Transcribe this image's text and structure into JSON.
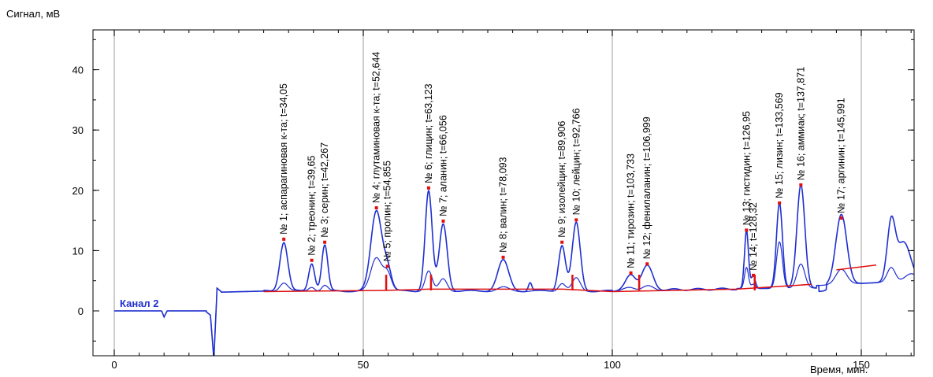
{
  "chart_data": {
    "type": "line",
    "ylabel": "Сигнал, мВ",
    "xlabel": "Время, мин.",
    "xlim": [
      0,
      162
    ],
    "ylim": [
      -7.5,
      46.5
    ],
    "xticks": [
      0,
      50,
      100,
      150
    ],
    "yticks": [
      -10,
      0,
      10,
      20,
      30,
      40
    ],
    "grid": true,
    "channel_label": "Канал 2",
    "colors": {
      "trace": "#1f2fd0",
      "baseline": "#e01010",
      "marker": "#e01010",
      "grid": "#bdbdbd",
      "axes": "#000000"
    },
    "peaks": [
      {
        "label": "№ 1; аспарагиновая к-та; t=34,05",
        "t": 34.05,
        "h": 11.5,
        "h2": 4.9,
        "w": 0.8
      },
      {
        "label": "№ 2; треонин; t=39,65",
        "t": 39.65,
        "h": 8.0,
        "h2": 4.2,
        "w": 0.6
      },
      {
        "label": "№ 3; серин; t=42,267",
        "t": 42.267,
        "h": 11.0,
        "h2": 4.4,
        "w": 0.6
      },
      {
        "label": "№ 4; глутаминовая к-та; t=52,644",
        "t": 52.644,
        "h": 16.7,
        "h2": 9.0,
        "w": 1.1
      },
      {
        "label": "№ 5; пролин; t=54,855",
        "t": 54.855,
        "h": 7.0,
        "h2": 6.4,
        "w": 0.8
      },
      {
        "label": "№ 6; глицин; t=63,123",
        "t": 63.123,
        "h": 20.0,
        "h2": 6.8,
        "w": 0.7
      },
      {
        "label": "№ 7; аланин; t=66,056",
        "t": 66.056,
        "h": 14.5,
        "h2": 5.5,
        "w": 0.8
      },
      {
        "label": "№ 8; валин; t=78,093",
        "t": 78.093,
        "h": 8.5,
        "h2": 4.1,
        "w": 1.1
      },
      {
        "label": "№ 9; изолейцин; t=89,906",
        "t": 89.906,
        "h": 11.0,
        "h2": 4.8,
        "w": 0.7
      },
      {
        "label": "№ 10; лейцин; t=92,766",
        "t": 92.766,
        "h": 14.7,
        "h2": 5.6,
        "w": 0.8
      },
      {
        "label": "№ 11; тирозин; t=103,733",
        "t": 103.733,
        "h": 5.9,
        "h2": 3.9,
        "w": 1.0
      },
      {
        "label": "№ 12; фенилаланин; t=106,999",
        "t": 106.999,
        "h": 7.4,
        "h2": 4.1,
        "w": 1.1
      },
      {
        "label": "№ 13; гистидин; t=126,95",
        "t": 126.95,
        "h": 13.0,
        "h2": 7.0,
        "w": 0.4
      },
      {
        "label": "№ 14; t=128,32",
        "t": 128.32,
        "h": 5.5,
        "h2": 4.2,
        "w": 0.4
      },
      {
        "label": "№ 15; лизин; t=133,569",
        "t": 133.569,
        "h": 17.5,
        "h2": 11.2,
        "w": 0.6
      },
      {
        "label": "№ 16; аммиак; t=137,871",
        "t": 137.871,
        "h": 20.5,
        "h2": 7.5,
        "w": 0.8
      },
      {
        "label": "№ 17; аргинин; t=145,991",
        "t": 145.991,
        "h": 15.0,
        "h2": 6.0,
        "w": 1.1
      }
    ]
  }
}
